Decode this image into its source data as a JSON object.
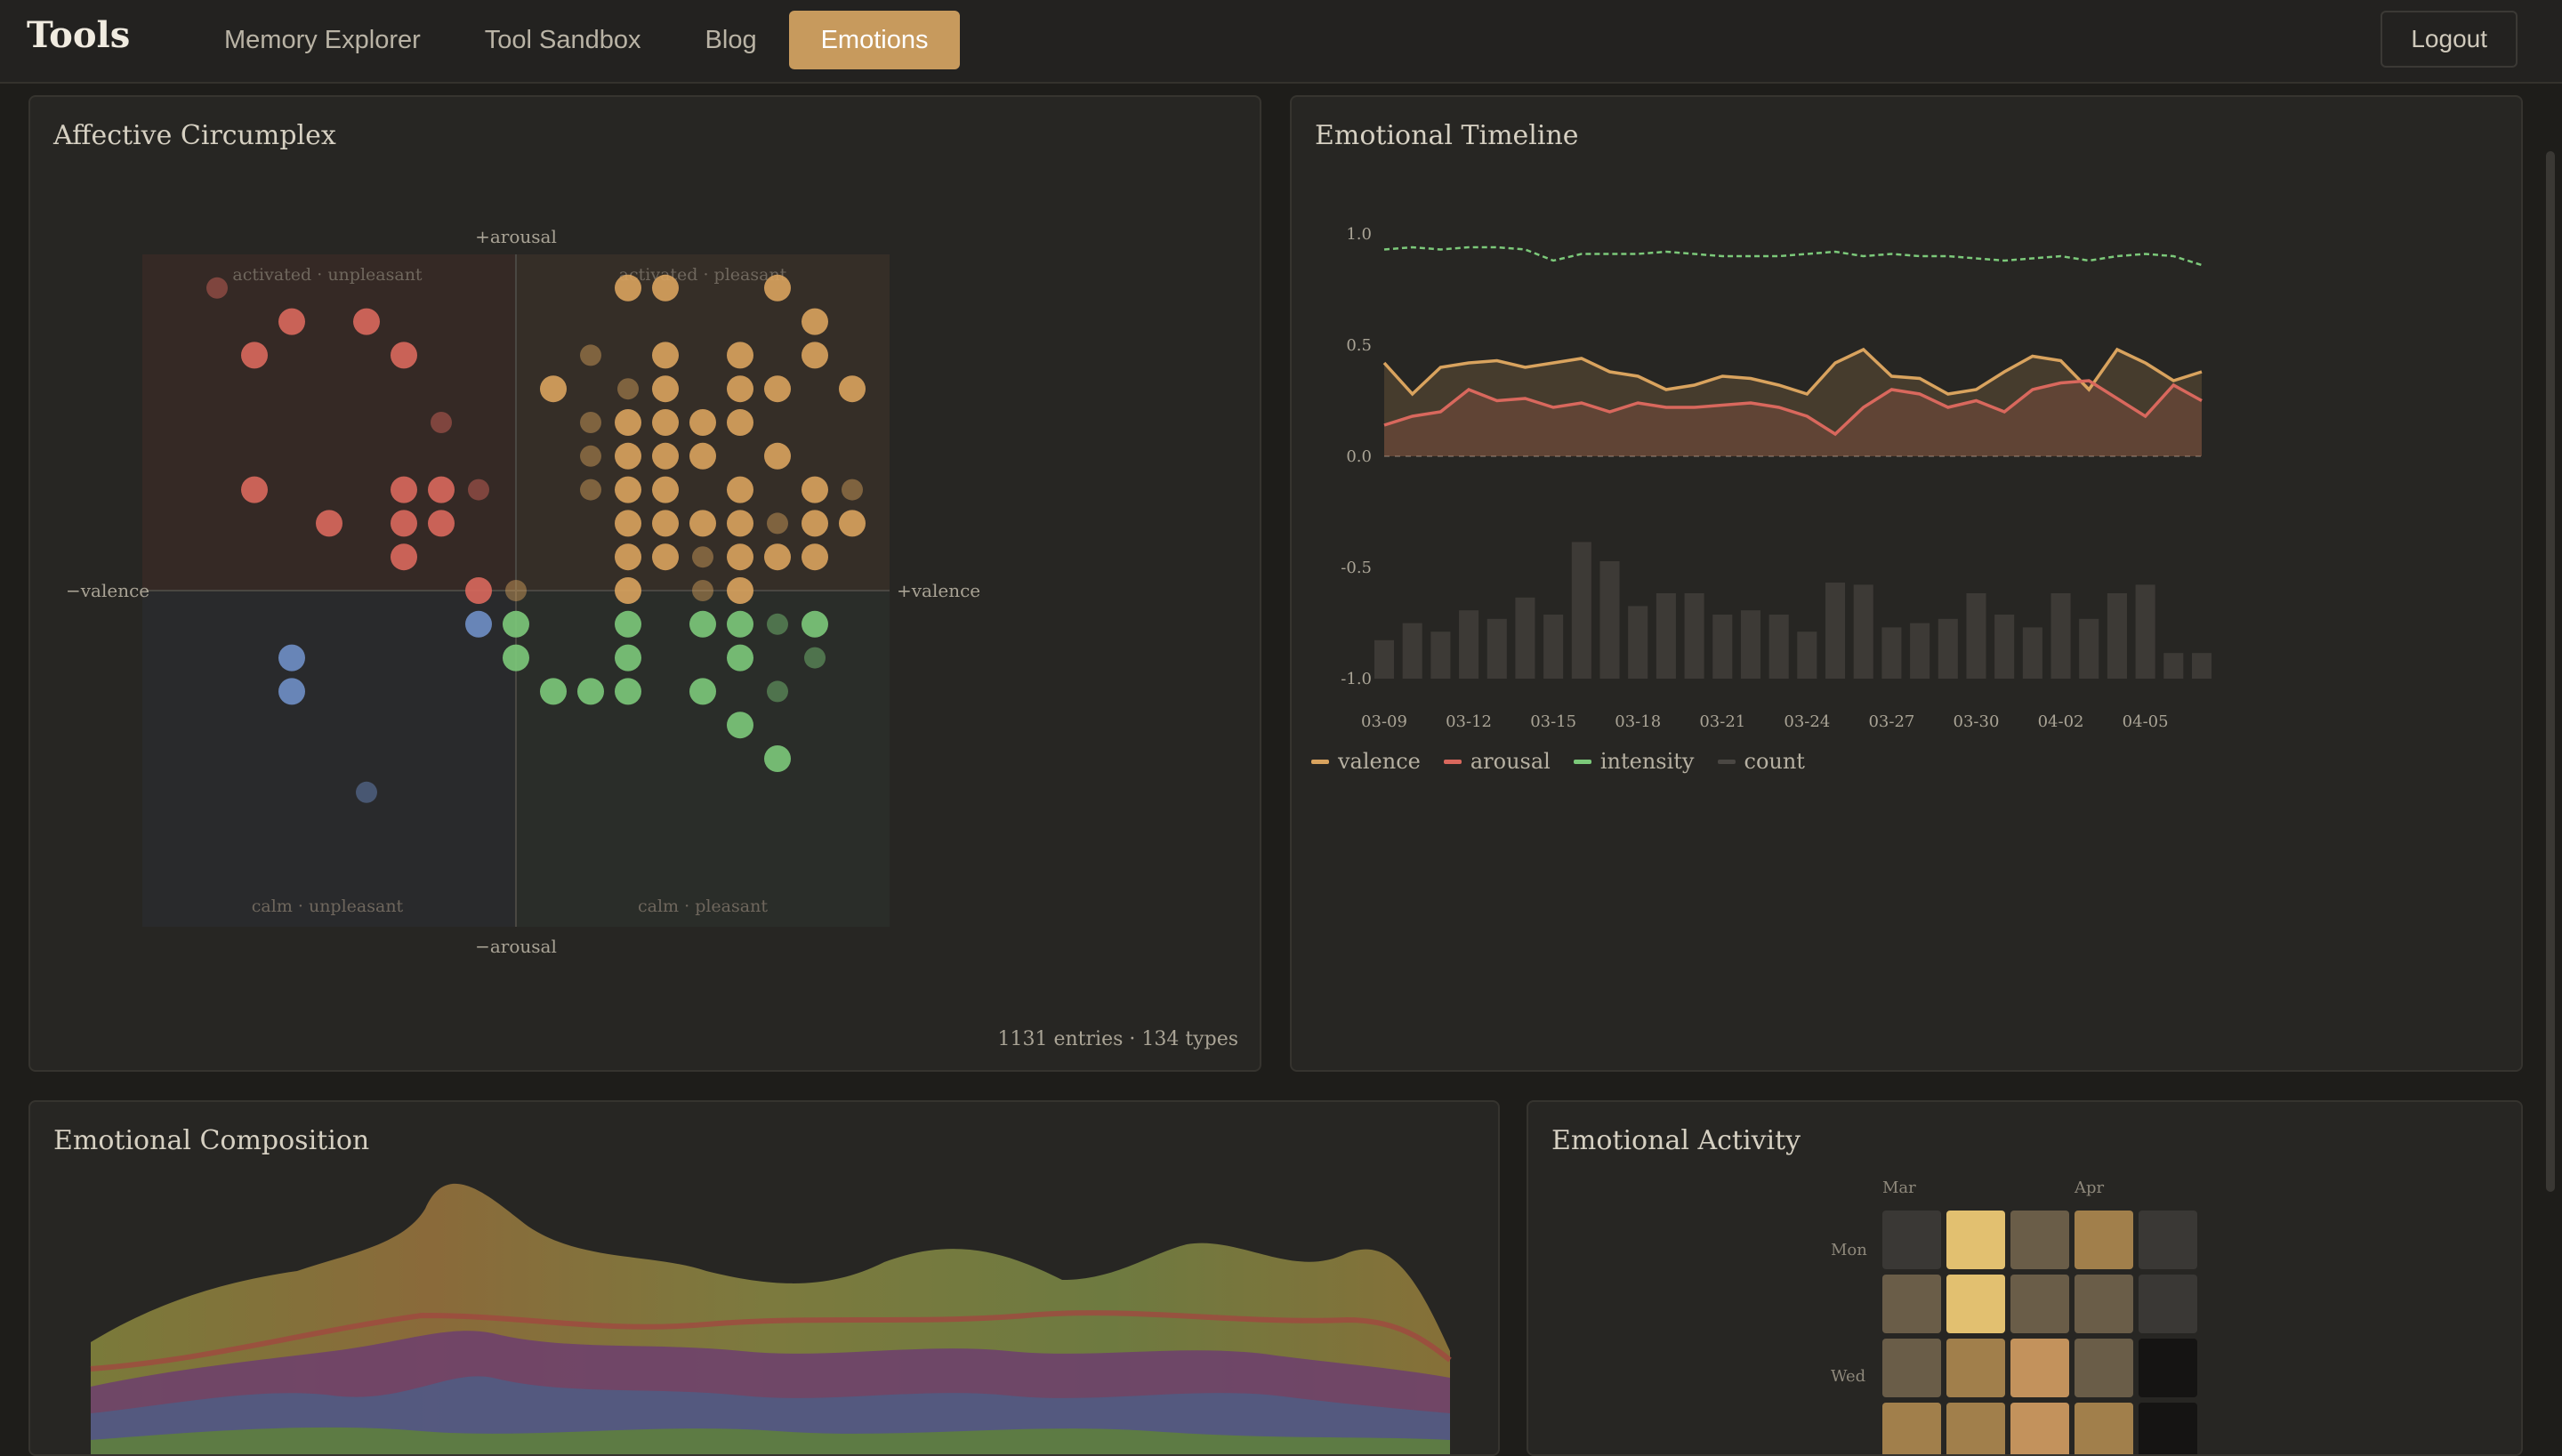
{
  "nav": {
    "brand": "Tools",
    "items": [
      {
        "label": "Memory Explorer",
        "active": false
      },
      {
        "label": "Tool Sandbox",
        "active": false
      },
      {
        "label": "Blog",
        "active": false
      },
      {
        "label": "Emotions",
        "active": true
      }
    ],
    "logout": "Logout"
  },
  "colors": {
    "accent": "#c79a5d",
    "unpleasant_active": "#d9685d",
    "pleasant_active": "#d9a35e",
    "unpleasant_calm": "#6f8fc7",
    "pleasant_calm": "#7cc97a"
  },
  "circumplex": {
    "title": "Affective Circumplex",
    "axis_top": "+arousal",
    "axis_bottom": "−arousal",
    "axis_left": "−valence",
    "axis_right": "+valence",
    "quadrant_tl": "activated · unpleasant",
    "quadrant_tr": "activated · pleasant",
    "quadrant_bl": "calm · unpleasant",
    "quadrant_br": "calm · pleasant",
    "footer": "1131 entries · 134 types"
  },
  "timeline": {
    "title": "Emotional Timeline",
    "y_ticks": [
      "1.0",
      "0.5",
      "0.0",
      "-0.5",
      "-1.0"
    ],
    "x_ticks": [
      "03-09",
      "03-12",
      "03-15",
      "03-18",
      "03-21",
      "03-24",
      "03-27",
      "03-30",
      "04-02",
      "04-05"
    ],
    "legend": [
      {
        "label": "valence",
        "color": "#d9a35e"
      },
      {
        "label": "arousal",
        "color": "#d9685d"
      },
      {
        "label": "intensity",
        "color": "#7cc97a"
      },
      {
        "label": "count",
        "color": "#4a4743"
      }
    ]
  },
  "chart_data": [
    {
      "type": "scatter",
      "title": "Affective Circumplex",
      "xlabel": "valence",
      "ylabel": "arousal",
      "xlim": [
        -1,
        1
      ],
      "ylim": [
        -1,
        1
      ],
      "points": [
        [
          -0.8,
          0.9,
          "a"
        ],
        [
          -0.6,
          0.8,
          "a"
        ],
        [
          -0.4,
          0.8,
          "a"
        ],
        [
          -0.7,
          0.7,
          "a"
        ],
        [
          -0.3,
          0.7,
          "a"
        ],
        [
          -0.2,
          0.5,
          "a"
        ],
        [
          -0.7,
          0.3,
          "a"
        ],
        [
          -0.5,
          0.2,
          "a"
        ],
        [
          -0.3,
          0.3,
          "a"
        ],
        [
          -0.2,
          0.3,
          "a"
        ],
        [
          -0.1,
          0.3,
          "a"
        ],
        [
          -0.3,
          0.2,
          "a"
        ],
        [
          -0.2,
          0.2,
          "a"
        ],
        [
          -0.3,
          0.1,
          "a"
        ],
        [
          -0.1,
          0.0,
          "a"
        ],
        [
          0.0,
          0.0,
          "b"
        ],
        [
          0.3,
          0.9,
          "b"
        ],
        [
          0.4,
          0.9,
          "b"
        ],
        [
          0.8,
          0.8,
          "b"
        ],
        [
          0.7,
          0.9,
          "b"
        ],
        [
          0.2,
          0.7,
          "b"
        ],
        [
          0.4,
          0.7,
          "b"
        ],
        [
          0.6,
          0.7,
          "b"
        ],
        [
          0.8,
          0.7,
          "b"
        ],
        [
          0.1,
          0.6,
          "b"
        ],
        [
          0.3,
          0.6,
          "b"
        ],
        [
          0.4,
          0.6,
          "b"
        ],
        [
          0.6,
          0.6,
          "b"
        ],
        [
          0.7,
          0.6,
          "b"
        ],
        [
          0.9,
          0.6,
          "b"
        ],
        [
          0.2,
          0.5,
          "b"
        ],
        [
          0.3,
          0.5,
          "b"
        ],
        [
          0.4,
          0.5,
          "b"
        ],
        [
          0.5,
          0.5,
          "b"
        ],
        [
          0.6,
          0.5,
          "b"
        ],
        [
          0.2,
          0.4,
          "b"
        ],
        [
          0.3,
          0.4,
          "b"
        ],
        [
          0.4,
          0.4,
          "b"
        ],
        [
          0.5,
          0.4,
          "b"
        ],
        [
          0.7,
          0.4,
          "b"
        ],
        [
          0.2,
          0.3,
          "b"
        ],
        [
          0.3,
          0.3,
          "b"
        ],
        [
          0.4,
          0.3,
          "b"
        ],
        [
          0.6,
          0.3,
          "b"
        ],
        [
          0.8,
          0.3,
          "b"
        ],
        [
          0.9,
          0.3,
          "b"
        ],
        [
          0.3,
          0.2,
          "b"
        ],
        [
          0.4,
          0.2,
          "b"
        ],
        [
          0.5,
          0.2,
          "b"
        ],
        [
          0.6,
          0.2,
          "b"
        ],
        [
          0.7,
          0.2,
          "b"
        ],
        [
          0.8,
          0.2,
          "b"
        ],
        [
          0.9,
          0.2,
          "b"
        ],
        [
          0.3,
          0.1,
          "b"
        ],
        [
          0.4,
          0.1,
          "b"
        ],
        [
          0.5,
          0.1,
          "b"
        ],
        [
          0.6,
          0.1,
          "b"
        ],
        [
          0.7,
          0.1,
          "b"
        ],
        [
          0.8,
          0.1,
          "b"
        ],
        [
          0.3,
          0.0,
          "b"
        ],
        [
          0.5,
          0.0,
          "b"
        ],
        [
          0.6,
          0.0,
          "b"
        ],
        [
          -0.1,
          -0.1,
          "c"
        ],
        [
          -0.6,
          -0.2,
          "c"
        ],
        [
          -0.6,
          -0.3,
          "c"
        ],
        [
          -0.4,
          -0.6,
          "c"
        ],
        [
          0.0,
          -0.1,
          "d"
        ],
        [
          0.3,
          -0.1,
          "d"
        ],
        [
          0.5,
          -0.1,
          "d"
        ],
        [
          0.6,
          -0.1,
          "d"
        ],
        [
          0.7,
          -0.1,
          "d"
        ],
        [
          0.8,
          -0.1,
          "d"
        ],
        [
          0.0,
          -0.2,
          "d"
        ],
        [
          0.3,
          -0.2,
          "d"
        ],
        [
          0.6,
          -0.2,
          "d"
        ],
        [
          0.8,
          -0.2,
          "d"
        ],
        [
          0.1,
          -0.3,
          "d"
        ],
        [
          0.2,
          -0.3,
          "d"
        ],
        [
          0.3,
          -0.3,
          "d"
        ],
        [
          0.5,
          -0.3,
          "d"
        ],
        [
          0.7,
          -0.3,
          "d"
        ],
        [
          0.6,
          -0.4,
          "d"
        ],
        [
          0.7,
          -0.5,
          "d"
        ]
      ]
    },
    {
      "type": "line",
      "title": "Emotional Timeline",
      "ylim": [
        -1,
        1
      ],
      "x": [
        "03-09",
        "03-10",
        "03-11",
        "03-12",
        "03-13",
        "03-14",
        "03-15",
        "03-16",
        "03-17",
        "03-18",
        "03-19",
        "03-20",
        "03-21",
        "03-22",
        "03-23",
        "03-24",
        "03-25",
        "03-26",
        "03-27",
        "03-28",
        "03-29",
        "03-30",
        "03-31",
        "04-01",
        "04-02",
        "04-03",
        "04-04",
        "04-05",
        "04-06",
        "04-07"
      ],
      "series": [
        {
          "name": "valence",
          "values": [
            0.42,
            0.28,
            0.4,
            0.42,
            0.43,
            0.4,
            0.42,
            0.44,
            0.38,
            0.36,
            0.3,
            0.32,
            0.36,
            0.35,
            0.32,
            0.28,
            0.42,
            0.48,
            0.36,
            0.35,
            0.28,
            0.3,
            0.38,
            0.45,
            0.43,
            0.3,
            0.48,
            0.42,
            0.34,
            0.38
          ]
        },
        {
          "name": "arousal",
          "values": [
            0.14,
            0.18,
            0.2,
            0.3,
            0.25,
            0.26,
            0.22,
            0.24,
            0.2,
            0.24,
            0.22,
            0.22,
            0.23,
            0.24,
            0.22,
            0.18,
            0.1,
            0.22,
            0.3,
            0.28,
            0.22,
            0.25,
            0.2,
            0.3,
            0.33,
            0.34,
            0.26,
            0.18,
            0.32,
            0.25
          ]
        },
        {
          "name": "intensity",
          "values": [
            0.93,
            0.94,
            0.93,
            0.94,
            0.94,
            0.93,
            0.88,
            0.91,
            0.91,
            0.91,
            0.92,
            0.91,
            0.9,
            0.9,
            0.9,
            0.91,
            0.92,
            0.9,
            0.91,
            0.9,
            0.9,
            0.89,
            0.88,
            0.89,
            0.9,
            0.88,
            0.9,
            0.91,
            0.9,
            0.86
          ]
        },
        {
          "name": "count",
          "values": [
            18,
            26,
            22,
            32,
            28,
            38,
            30,
            64,
            55,
            34,
            40,
            40,
            30,
            32,
            30,
            22,
            45,
            44,
            24,
            26,
            28,
            40,
            30,
            24,
            40,
            28,
            40,
            44,
            12,
            12
          ]
        }
      ]
    }
  ]
}
